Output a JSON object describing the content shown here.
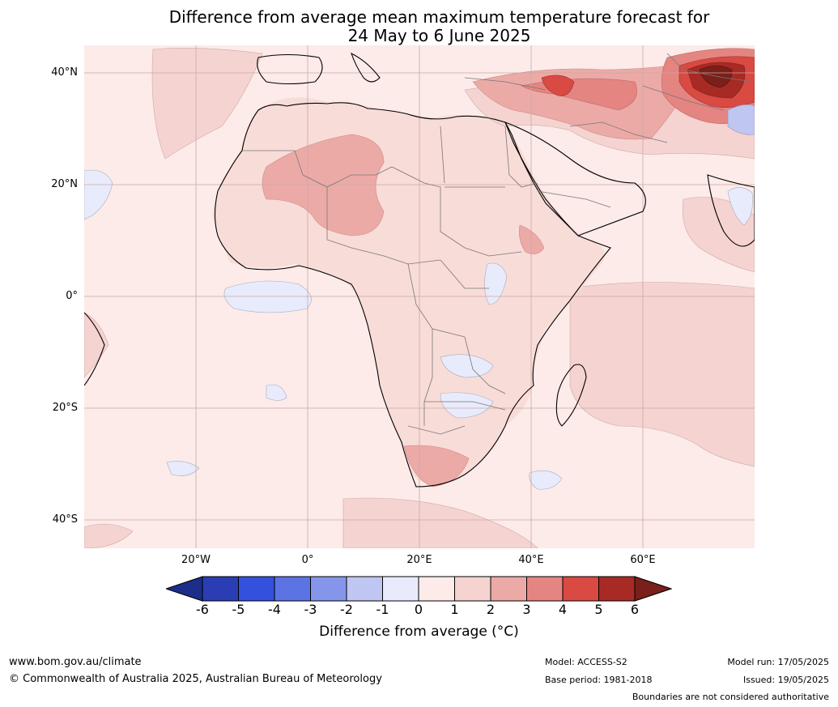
{
  "title_line1": "Difference from average mean maximum temperature forecast for",
  "title_line2": "24 May to 6 June 2025",
  "axes": {
    "lat_labels": [
      "40°N",
      "20°N",
      "0°",
      "20°S",
      "40°S"
    ],
    "lon_labels": [
      "20°W",
      "0°",
      "20°E",
      "40°E",
      "60°E"
    ]
  },
  "colorbar": {
    "label": "Difference from average (°C)",
    "ticks": [
      "-6",
      "-5",
      "-4",
      "-3",
      "-2",
      "-1",
      "0",
      "1",
      "2",
      "3",
      "4",
      "5",
      "6"
    ],
    "colors": [
      "#1c2d8a",
      "#2a3db3",
      "#3451de",
      "#5b73e3",
      "#8596ea",
      "#bfc6f2",
      "#e8ebfb",
      "#fcebe9",
      "#f5d3d0",
      "#ecaaa7",
      "#e48582",
      "#d84a42",
      "#a82a24",
      "#7a1f19"
    ]
  },
  "footer": {
    "website": "www.bom.gov.au/climate",
    "copyright": "© Commonwealth of Australia 2025, Australian Bureau of Meteorology",
    "model": "Model: ACCESS-S2",
    "base_period": "Base period: 1981-2018",
    "model_run": "Model run: 17/05/2025",
    "issued": "Issued: 19/05/2025",
    "disclaimer": "Boundaries are not considered authoritative"
  }
}
